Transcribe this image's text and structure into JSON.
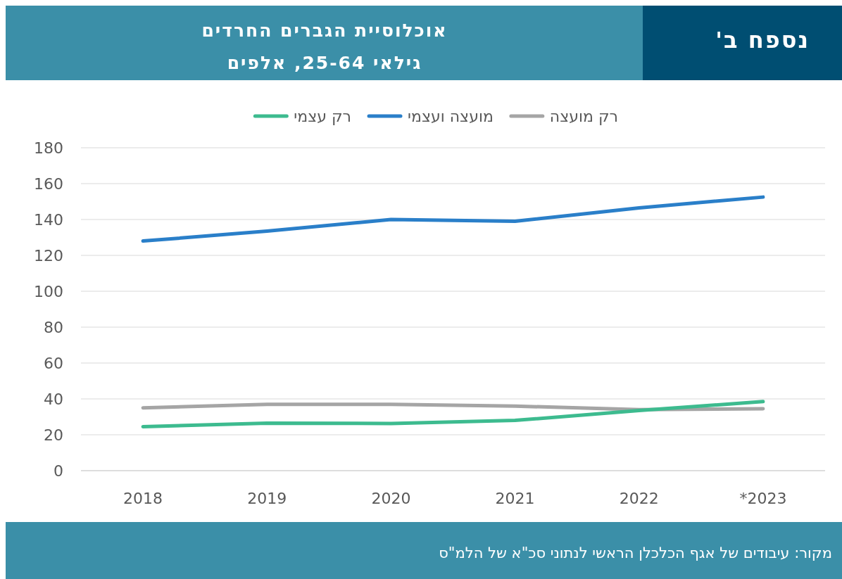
{
  "chart_data": {
    "type": "line",
    "title": "אוכלוסיית הגברים החרדים",
    "subtitle": "גילאי 25-64, אלפים",
    "annotations": [
      "נספח ב'",
      "מקור: עיבודים של אגף הכלכלן הראשי לנתוני סכ\"א של הלמ\"ס"
    ],
    "categories": [
      "2018",
      "2019",
      "2020",
      "2021",
      "2022",
      "*2023"
    ],
    "series": [
      {
        "name": "רק מועצה",
        "color": "#a5a5a5",
        "values": [
          35,
          37,
          37,
          36,
          34,
          34.5
        ]
      },
      {
        "name": "מועצה ועצמי",
        "color": "#2a7fc9",
        "values": [
          128,
          133.5,
          140,
          139,
          146.5,
          152.5
        ]
      },
      {
        "name": "רק עצמי",
        "color": "#3dbb8f",
        "values": [
          24.5,
          26.5,
          26.3,
          28,
          33.5,
          38.5
        ]
      }
    ],
    "ylim": [
      0,
      180
    ],
    "yticks": [
      0,
      20,
      40,
      60,
      80,
      100,
      120,
      140,
      160,
      180
    ],
    "grid": "y",
    "legend": "top",
    "line_style": "solid",
    "marker": "none"
  }
}
